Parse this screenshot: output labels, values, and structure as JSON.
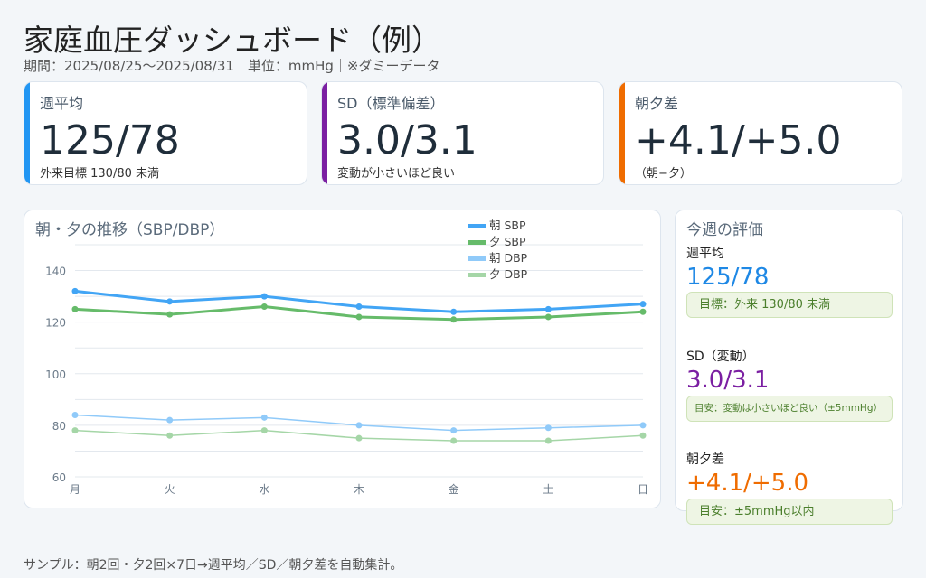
{
  "header": {
    "title": "家庭血圧ダッシュボード（例）",
    "subtitle": "期間：2025/08/25〜2025/08/31｜単位：mmHg｜※ダミーデータ"
  },
  "kpis": [
    {
      "label": "週平均",
      "value": "125/78",
      "note": "外来目標 130/80 未満",
      "color": "#2196f3"
    },
    {
      "label": "SD（標準偏差）",
      "value": "3.0/3.1",
      "note": "変動が小さいほど良い",
      "color": "#7b1fa2"
    },
    {
      "label": "朝夕差",
      "value": "+4.1/+5.0",
      "note": "（朝−夕）",
      "color": "#ef6c00"
    }
  ],
  "chart_data": {
    "type": "line",
    "title": "朝・夕の推移（SBP/DBP）",
    "categories": [
      "月",
      "火",
      "水",
      "木",
      "金",
      "土",
      "日"
    ],
    "ylim": [
      60,
      150
    ],
    "yticks": [
      "60",
      "80",
      "100",
      "120",
      "140"
    ],
    "grid": true,
    "legend": "top-right",
    "series": [
      {
        "name": "朝 SBP",
        "color": "#42a5f5",
        "width": 3,
        "values": [
          132,
          128,
          130,
          126,
          124,
          125,
          127
        ]
      },
      {
        "name": "夕 SBP",
        "color": "#66bb6a",
        "width": 3,
        "values": [
          125,
          123,
          126,
          122,
          121,
          122,
          124
        ]
      },
      {
        "name": "朝 DBP",
        "color": "#90caf9",
        "width": 1.5,
        "values": [
          84,
          82,
          83,
          80,
          78,
          79,
          80
        ]
      },
      {
        "name": "夕 DBP",
        "color": "#a5d6a7",
        "width": 1.5,
        "values": [
          78,
          76,
          78,
          75,
          74,
          74,
          76
        ]
      }
    ]
  },
  "evaluation": {
    "title": "今週の評価",
    "items": [
      {
        "label": "週平均",
        "value": "125/78",
        "badge": "目標：外来 130/80 未満",
        "color": "#1e88e5"
      },
      {
        "label": "SD（変動）",
        "value": "3.0/3.1",
        "badge": "目安：変動は小さいほど良い（±5mmHg）",
        "color": "#7b1fa2"
      },
      {
        "label": "朝夕差",
        "value": "+4.1/+5.0",
        "badge": "目安：±5mmHg以内",
        "color": "#ef6c00"
      }
    ]
  },
  "footer": "サンプル：朝2回・夕2回×7日→週平均／SD／朝夕差を自動集計。"
}
